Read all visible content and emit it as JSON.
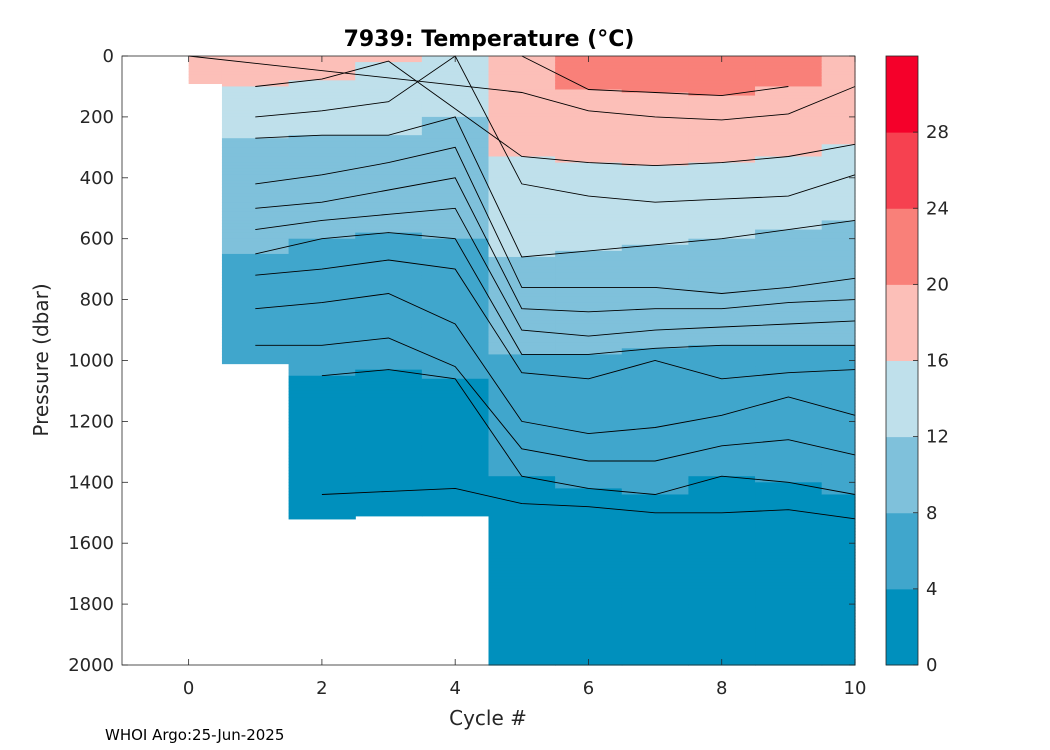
{
  "footer": "WHOI Argo:25-Jun-2025",
  "chart_data": {
    "type": "contour",
    "title": "7939:  Temperature (°C)",
    "xlabel": "Cycle #",
    "ylabel": "Pressure (dbar)",
    "xlim": [
      -1,
      10
    ],
    "ylim": [
      2000,
      0
    ],
    "y_reversed": true,
    "xticks": [
      0,
      2,
      4,
      6,
      8,
      10
    ],
    "yticks": [
      0,
      200,
      400,
      600,
      800,
      1000,
      1200,
      1400,
      1600,
      1800,
      2000
    ],
    "colorbar": {
      "range": [
        0,
        32
      ],
      "ticks": [
        0,
        4,
        8,
        12,
        16,
        20,
        24,
        28
      ],
      "bands": [
        {
          "min": 0,
          "max": 4,
          "color": "#0090bd"
        },
        {
          "min": 4,
          "max": 8,
          "color": "#40a6cc"
        },
        {
          "min": 8,
          "max": 12,
          "color": "#7fc1db"
        },
        {
          "min": 12,
          "max": 16,
          "color": "#bfe0eb"
        },
        {
          "min": 16,
          "max": 20,
          "color": "#fcbfb8"
        },
        {
          "min": 20,
          "max": 24,
          "color": "#f98079"
        },
        {
          "min": 24,
          "max": 28,
          "color": "#f64150"
        },
        {
          "min": 28,
          "max": 32,
          "color": "#f5002a"
        }
      ]
    },
    "profiles": [
      {
        "cycle": 0,
        "max_pressure": 90,
        "temps": [
          [
            0,
            18
          ],
          [
            90,
            17.5
          ]
        ]
      },
      {
        "cycle": 1,
        "max_pressure": 1010,
        "temps": [
          [
            0,
            17
          ],
          [
            90,
            16.5
          ],
          [
            120,
            15
          ],
          [
            200,
            14
          ],
          [
            270,
            12
          ],
          [
            420,
            11
          ],
          [
            500,
            10
          ],
          [
            570,
            9
          ],
          [
            650,
            8
          ],
          [
            720,
            7
          ],
          [
            830,
            6
          ],
          [
            900,
            5.5
          ],
          [
            1000,
            4.5
          ]
        ]
      },
      {
        "cycle": 2,
        "max_pressure": 1520,
        "temps": [
          [
            0,
            17
          ],
          [
            50,
            16.5
          ],
          [
            180,
            14
          ],
          [
            260,
            12
          ],
          [
            390,
            11
          ],
          [
            480,
            10
          ],
          [
            540,
            9
          ],
          [
            600,
            8
          ],
          [
            700,
            7
          ],
          [
            810,
            6
          ],
          [
            900,
            5.5
          ],
          [
            1000,
            4.5
          ],
          [
            1050,
            4
          ],
          [
            1200,
            3.5
          ],
          [
            1440,
            3
          ],
          [
            1520,
            2.9
          ]
        ]
      },
      {
        "cycle": 3,
        "max_pressure": 1510,
        "temps": [
          [
            0,
            16.5
          ],
          [
            50,
            15
          ],
          [
            150,
            14
          ],
          [
            260,
            12
          ],
          [
            350,
            11
          ],
          [
            440,
            10
          ],
          [
            520,
            9
          ],
          [
            580,
            8
          ],
          [
            670,
            7
          ],
          [
            780,
            6
          ],
          [
            880,
            5.5
          ],
          [
            1000,
            4.2
          ],
          [
            1030,
            4
          ],
          [
            1200,
            3.5
          ],
          [
            1430,
            3
          ],
          [
            1510,
            2.9
          ]
        ]
      },
      {
        "cycle": 4,
        "max_pressure": 1510,
        "temps": [
          [
            0,
            14
          ],
          [
            100,
            13
          ],
          [
            200,
            12
          ],
          [
            300,
            11
          ],
          [
            400,
            10
          ],
          [
            500,
            9
          ],
          [
            600,
            8
          ],
          [
            700,
            7
          ],
          [
            880,
            6
          ],
          [
            1000,
            5.5
          ],
          [
            1060,
            4
          ],
          [
            1200,
            3.5
          ],
          [
            1420,
            3
          ],
          [
            1510,
            2.9
          ]
        ]
      },
      {
        "cycle": 5,
        "max_pressure": 2000,
        "temps": [
          [
            0,
            20
          ],
          [
            120,
            18
          ],
          [
            330,
            16
          ],
          [
            420,
            14
          ],
          [
            660,
            12
          ],
          [
            760,
            11
          ],
          [
            830,
            10
          ],
          [
            900,
            9
          ],
          [
            980,
            8
          ],
          [
            1040,
            7
          ],
          [
            1200,
            6
          ],
          [
            1380,
            4
          ],
          [
            1470,
            3
          ],
          [
            1800,
            2.5
          ],
          [
            2000,
            2.2
          ]
        ]
      },
      {
        "cycle": 6,
        "max_pressure": 2000,
        "temps": [
          [
            0,
            22
          ],
          [
            110,
            20
          ],
          [
            180,
            18
          ],
          [
            350,
            16
          ],
          [
            460,
            14
          ],
          [
            640,
            12
          ],
          [
            760,
            11
          ],
          [
            840,
            10
          ],
          [
            920,
            9
          ],
          [
            980,
            8
          ],
          [
            1060,
            7
          ],
          [
            1240,
            6
          ],
          [
            1420,
            4
          ],
          [
            1480,
            3
          ],
          [
            1850,
            2.5
          ],
          [
            2000,
            2.2
          ]
        ]
      },
      {
        "cycle": 7,
        "max_pressure": 2000,
        "temps": [
          [
            0,
            22
          ],
          [
            120,
            20
          ],
          [
            200,
            18
          ],
          [
            360,
            16
          ],
          [
            480,
            14
          ],
          [
            620,
            12
          ],
          [
            760,
            11
          ],
          [
            830,
            10
          ],
          [
            900,
            9
          ],
          [
            960,
            8
          ],
          [
            1000,
            7
          ],
          [
            1220,
            6
          ],
          [
            1440,
            4
          ],
          [
            1500,
            3
          ],
          [
            1880,
            2.5
          ],
          [
            2000,
            2.2
          ]
        ]
      },
      {
        "cycle": 8,
        "max_pressure": 2000,
        "temps": [
          [
            0,
            22
          ],
          [
            130,
            20
          ],
          [
            210,
            18
          ],
          [
            350,
            16
          ],
          [
            470,
            14
          ],
          [
            600,
            12
          ],
          [
            780,
            11
          ],
          [
            830,
            10
          ],
          [
            890,
            9
          ],
          [
            950,
            8
          ],
          [
            1060,
            7
          ],
          [
            1180,
            6
          ],
          [
            1380,
            4
          ],
          [
            1500,
            3
          ],
          [
            1710,
            2.5
          ],
          [
            2000,
            2.2
          ]
        ]
      },
      {
        "cycle": 9,
        "max_pressure": 2000,
        "temps": [
          [
            0,
            21
          ],
          [
            100,
            20
          ],
          [
            190,
            18
          ],
          [
            330,
            16
          ],
          [
            460,
            14
          ],
          [
            570,
            12
          ],
          [
            760,
            11
          ],
          [
            810,
            10
          ],
          [
            880,
            9
          ],
          [
            950,
            8
          ],
          [
            1040,
            7
          ],
          [
            1120,
            6
          ],
          [
            1400,
            4
          ],
          [
            1490,
            3
          ],
          [
            1750,
            2.5
          ],
          [
            2000,
            2.2
          ]
        ]
      },
      {
        "cycle": 10,
        "max_pressure": 2000,
        "temps": [
          [
            0,
            19
          ],
          [
            100,
            18
          ],
          [
            290,
            16
          ],
          [
            390,
            14
          ],
          [
            540,
            12
          ],
          [
            730,
            11
          ],
          [
            800,
            10
          ],
          [
            870,
            9
          ],
          [
            950,
            8
          ],
          [
            1030,
            7
          ],
          [
            1180,
            6
          ],
          [
            1440,
            4
          ],
          [
            1520,
            3
          ],
          [
            1840,
            2.5
          ],
          [
            2000,
            2.2
          ]
        ]
      }
    ]
  }
}
